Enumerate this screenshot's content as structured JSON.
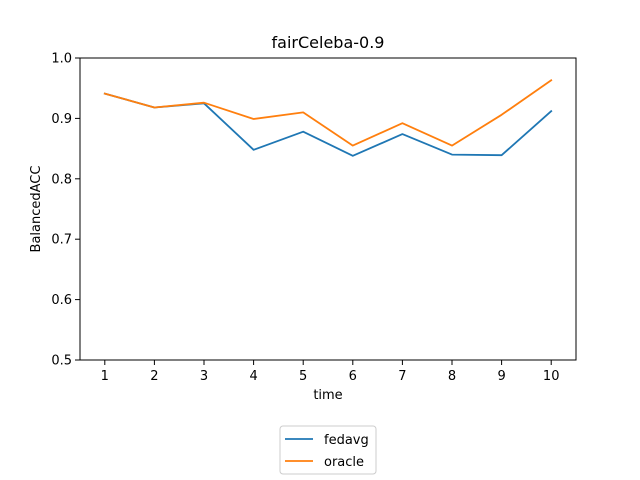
{
  "chart_data": {
    "type": "line",
    "title": "fairCeleba-0.9",
    "xlabel": "time",
    "ylabel": "BalancedACC",
    "x": [
      1,
      2,
      3,
      4,
      5,
      6,
      7,
      8,
      9,
      10
    ],
    "xlim": [
      0.5,
      10.5
    ],
    "ylim": [
      0.5,
      1.0
    ],
    "yticks": [
      "0.5",
      "0.6",
      "0.7",
      "0.8",
      "0.9",
      "1.0"
    ],
    "xticks": [
      "1",
      "2",
      "3",
      "4",
      "5",
      "6",
      "7",
      "8",
      "9",
      "10"
    ],
    "grid": false,
    "legend_placement": "bottom-center",
    "series": [
      {
        "name": "fedavg",
        "color": "#1f77b4",
        "values": [
          0.941,
          0.918,
          0.925,
          0.848,
          0.878,
          0.838,
          0.874,
          0.84,
          0.839,
          0.912
        ]
      },
      {
        "name": "oracle",
        "color": "#ff7f0e",
        "values": [
          0.941,
          0.918,
          0.926,
          0.899,
          0.91,
          0.855,
          0.892,
          0.855,
          0.906,
          0.963
        ]
      }
    ]
  }
}
